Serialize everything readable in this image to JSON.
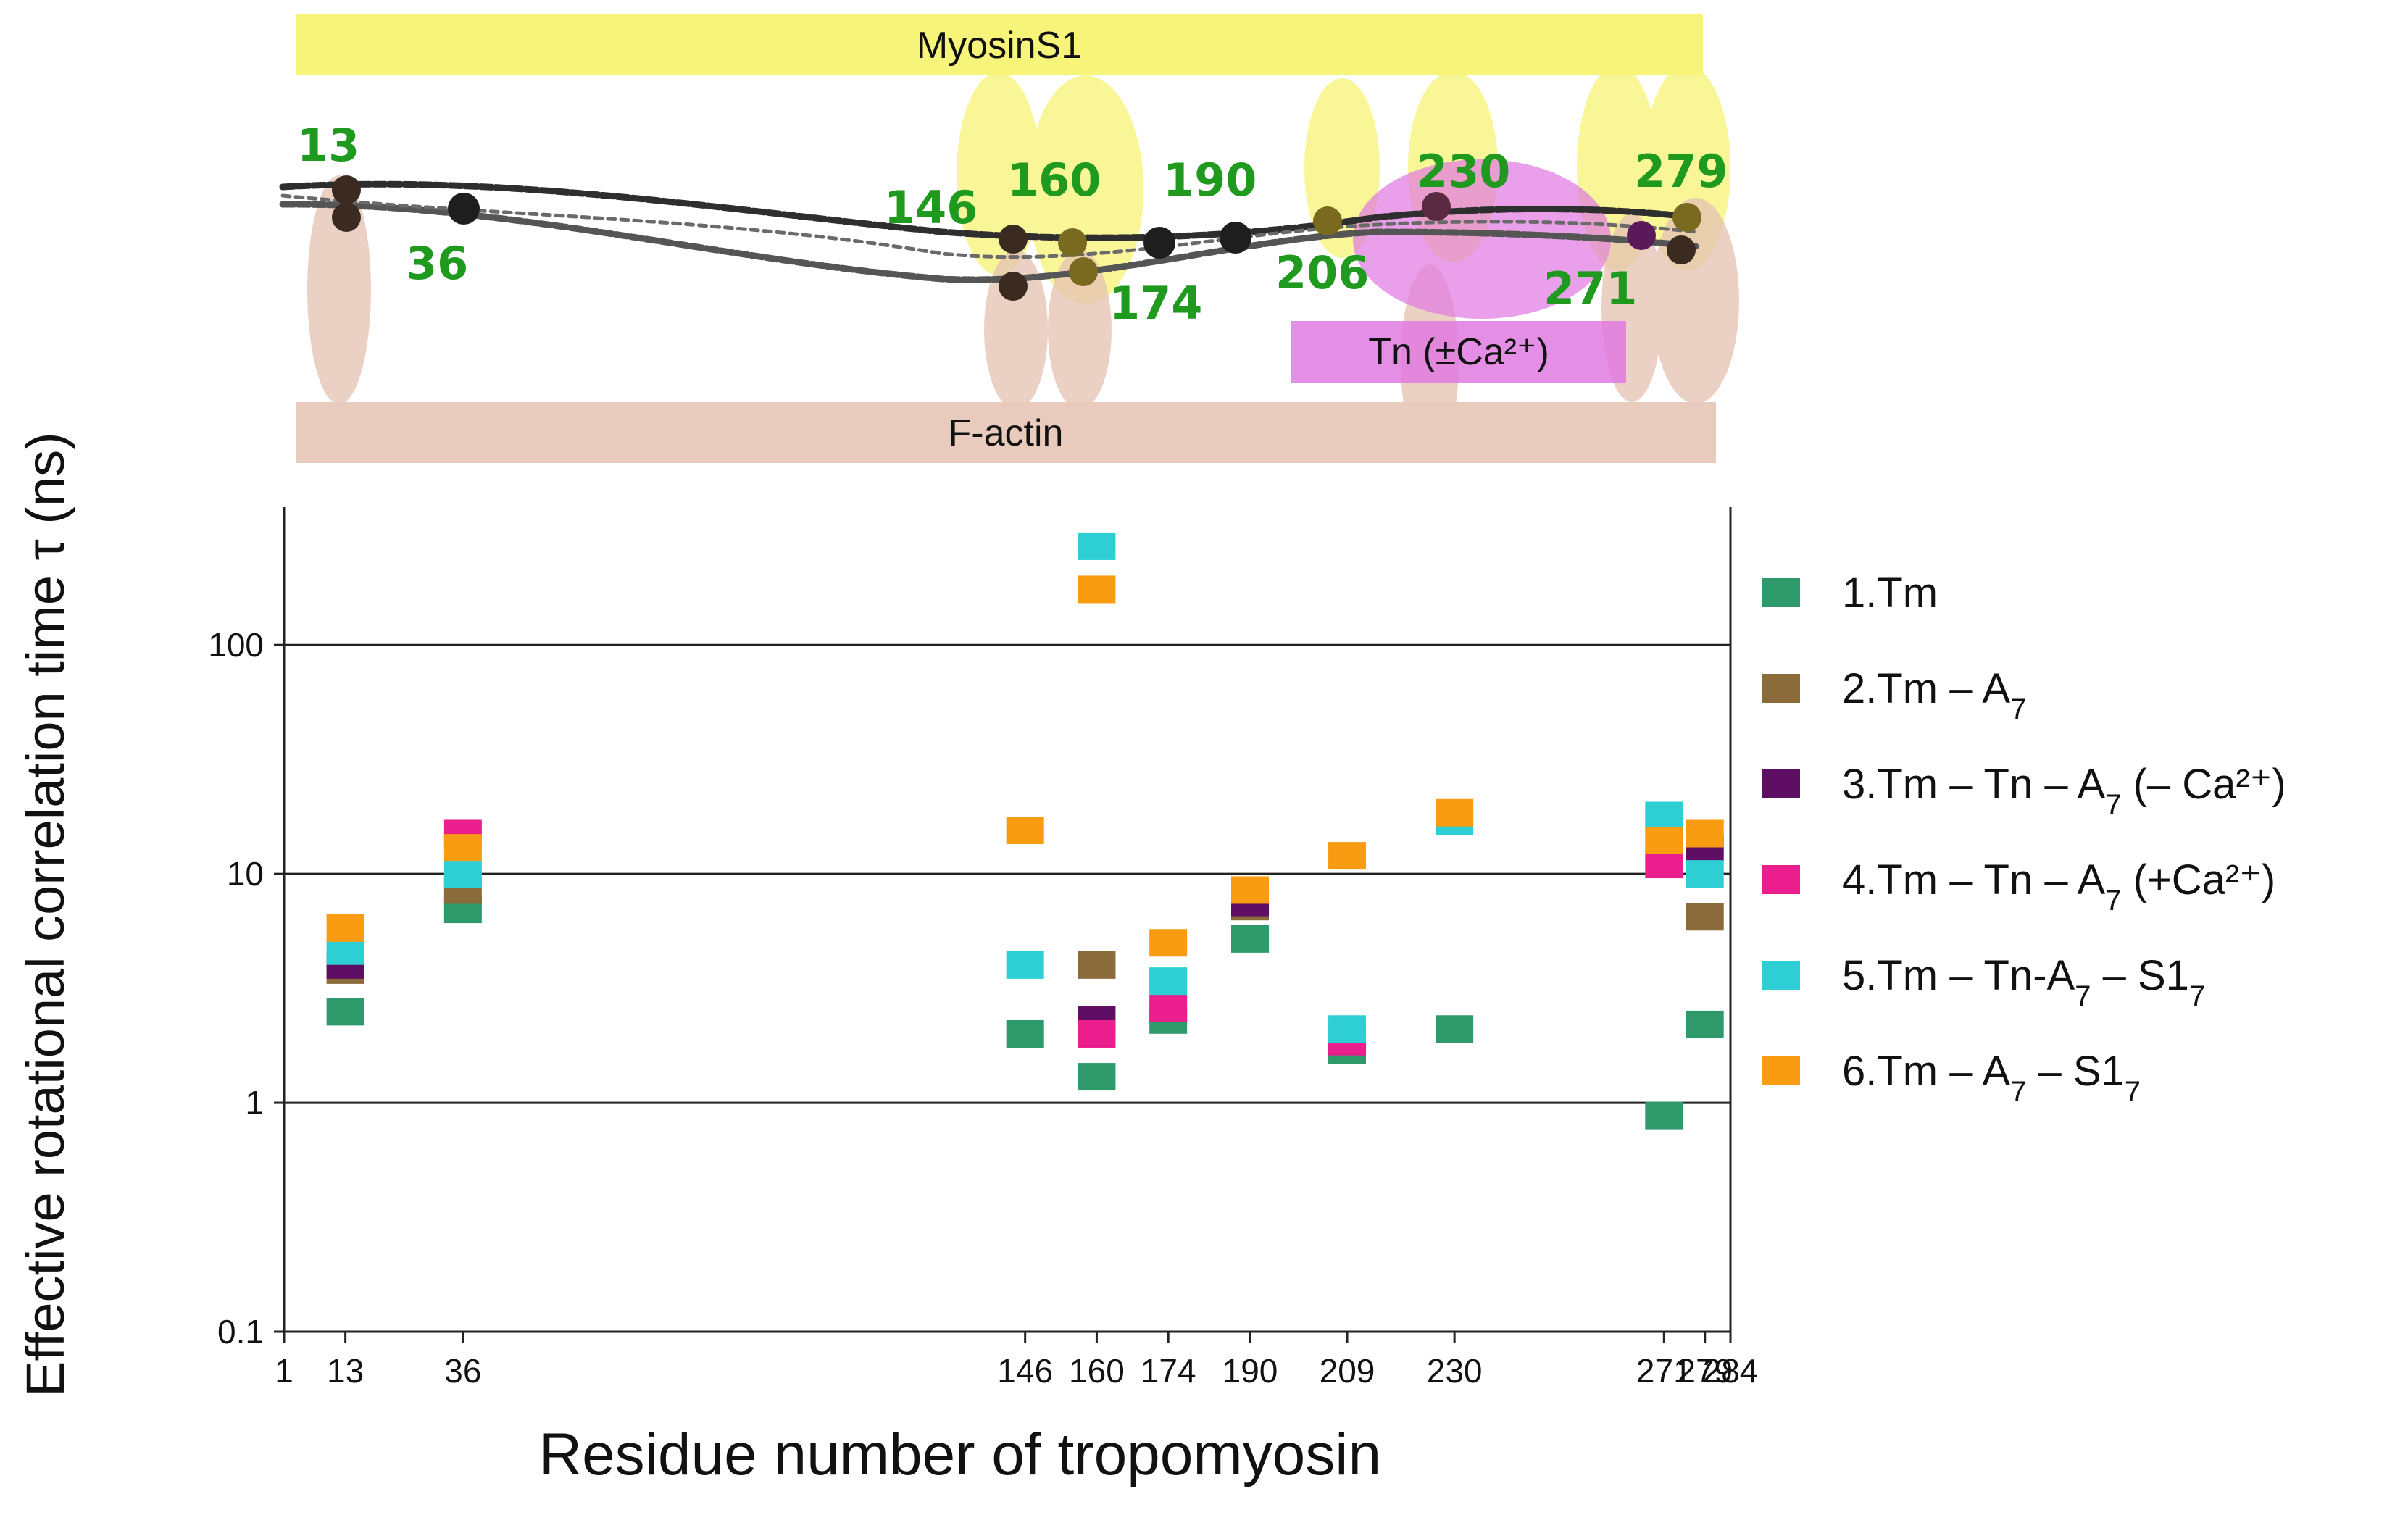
{
  "diagram": {
    "top_bar_label": "MyosinS1",
    "bottom_bar_label": "F-actin",
    "tn_box_label": "Tn (±Ca²⁺)",
    "residue_labels": [
      "13",
      "36",
      "146",
      "160",
      "190",
      "174",
      "206",
      "230",
      "271",
      "279"
    ],
    "colors": {
      "myosin": "#f7f47a",
      "actin": "#e9cbbd",
      "tn": "#e07ae0",
      "residue_label": "#1f9a1f",
      "strand": "#333333"
    }
  },
  "chart_data": {
    "type": "scatter",
    "title": "",
    "xlabel": "Residue number of tropomyosin",
    "ylabel": "Effective rotational correlation time τ (ns)",
    "yscale": "log",
    "ylim": [
      0.1,
      400
    ],
    "y_ticks": [
      0.1,
      1,
      10,
      100
    ],
    "y_tick_labels": [
      "0.1",
      "1",
      "10",
      "100"
    ],
    "grid_y": [
      1,
      10,
      100
    ],
    "x_ticks": [
      1,
      13,
      36,
      146,
      160,
      174,
      190,
      209,
      230,
      271,
      279,
      284
    ],
    "x_tick_labels": [
      "1",
      "13",
      "36",
      "146",
      "160",
      "174",
      "190",
      "209",
      "230",
      "271",
      "279",
      "284"
    ],
    "legend_position": "right",
    "series": [
      {
        "name": "1.Tm",
        "label_parts": [
          "1.Tm"
        ],
        "color": "#2e9a6b",
        "points": [
          [
            13,
            2.5
          ],
          [
            36,
            7.0
          ],
          [
            146,
            2.0
          ],
          [
            160,
            1.3
          ],
          [
            174,
            2.3
          ],
          [
            190,
            5.2
          ],
          [
            209,
            1.7
          ],
          [
            230,
            2.1
          ],
          [
            271,
            0.88
          ],
          [
            279,
            2.2
          ]
        ]
      },
      {
        "name": "2.Tm – A7",
        "label_parts": [
          "2.Tm – A",
          "7",
          ""
        ],
        "color": "#8c6b3a",
        "points": [
          [
            13,
            3.8
          ],
          [
            36,
            8.5
          ],
          [
            160,
            4.0
          ],
          [
            190,
            7.2
          ],
          [
            279,
            6.5
          ]
        ]
      },
      {
        "name": "3.Tm – Tn – A7 (– Ca2+)",
        "label_parts": [
          "3.Tm  – Tn – A",
          "7",
          " (– Ca²⁺)"
        ],
        "color": "#5e0e63",
        "points": [
          [
            13,
            4.0
          ],
          [
            160,
            2.3
          ],
          [
            190,
            7.5
          ],
          [
            279,
            13.0
          ]
        ]
      },
      {
        "name": "4.Tm – Tn – A7 (+Ca2+)",
        "label_parts": [
          "4.Tm – Tn – A",
          "7",
          " (+Ca²⁺)"
        ],
        "color": "#ea1e8c",
        "points": [
          [
            36,
            15.0
          ],
          [
            160,
            2.0
          ],
          [
            174,
            2.6
          ],
          [
            209,
            1.85
          ],
          [
            271,
            11.0
          ]
        ]
      },
      {
        "name": "5.Tm – Tn-A7 – S17",
        "label_parts": [
          "5.Tm – Tn-A",
          "7",
          " – S1",
          "7"
        ],
        "color": "#2ecfd4",
        "points": [
          [
            13,
            4.6
          ],
          [
            36,
            10.0
          ],
          [
            146,
            4.0
          ],
          [
            160,
            270
          ],
          [
            174,
            3.4
          ],
          [
            209,
            2.1
          ],
          [
            230,
            17
          ],
          [
            271,
            18
          ],
          [
            279,
            10
          ]
        ]
      },
      {
        "name": "6.Tm – A7 – S17",
        "label_parts": [
          "6.Tm – A",
          "7",
          " – S1",
          "7"
        ],
        "color": "#f99c12",
        "points": [
          [
            13,
            5.8
          ],
          [
            36,
            13.0
          ],
          [
            146,
            15.5
          ],
          [
            160,
            175
          ],
          [
            174,
            5.0
          ],
          [
            190,
            8.5
          ],
          [
            209,
            12
          ],
          [
            230,
            18.5
          ],
          [
            271,
            14
          ],
          [
            279,
            15
          ]
        ]
      }
    ]
  }
}
